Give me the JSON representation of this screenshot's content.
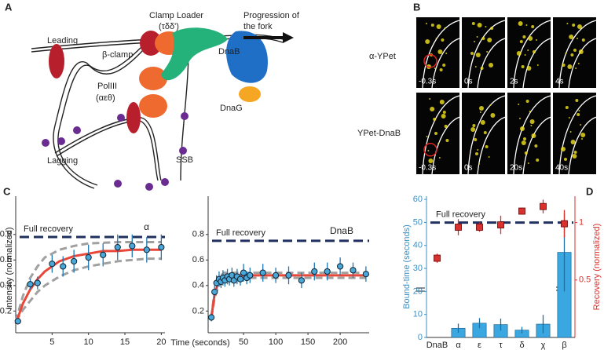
{
  "panels": {
    "a": {
      "letter": "A",
      "clamp_loader": "Clamp Loader",
      "clamp_loader_sub": "(τδδ')",
      "progression_1": "Progression of",
      "progression_2": "the fork",
      "leading": "Leading",
      "beta_clamp": "β-clamp",
      "dnab": "DnaB",
      "pol": "PolIII",
      "pol_sub": "(αεθ)",
      "dnag": "DnaG",
      "lagging": "Lagging",
      "ssb": "SSB"
    },
    "b": {
      "letter": "B",
      "row_labels": [
        "α-YPet",
        "YPet-DnaB"
      ],
      "times": [
        [
          "-0.3s",
          "0s",
          "2s",
          "4s"
        ],
        [
          "-0.3s",
          "0s",
          "20s",
          "40s"
        ]
      ]
    },
    "c": {
      "letter": "C"
    },
    "d": {
      "letter": "D"
    }
  },
  "chart_data": [
    {
      "type": "scatter",
      "ylabel": "Intensity (normalized)",
      "xlabel": "Time (seconds)",
      "annotation": "α",
      "reference_label": "Full recovery",
      "reference_value": 0.78,
      "xlim": [
        0,
        20.5
      ],
      "xticks": [
        5,
        10,
        15,
        20
      ],
      "ylim": [
        0.03,
        1.1
      ],
      "yticks": [
        0.2,
        0.4,
        0.6,
        0.8
      ],
      "color": "#4aa8d8",
      "x": [
        0.3,
        2,
        3,
        5,
        6.5,
        8,
        10,
        12,
        14,
        16,
        18,
        20
      ],
      "values": [
        0.12,
        0.41,
        0.42,
        0.57,
        0.55,
        0.59,
        0.62,
        0.64,
        0.7,
        0.71,
        0.68,
        0.7
      ],
      "errors": [
        0.02,
        0.04,
        0.05,
        0.07,
        0.08,
        0.09,
        0.1,
        0.09,
        0.1,
        0.09,
        0.1,
        0.1
      ],
      "fit": {
        "color": "#e8473a",
        "x": [
          0,
          1,
          2,
          3,
          4,
          6,
          8,
          10,
          12,
          14,
          16,
          18,
          20
        ],
        "values": [
          0.1,
          0.26,
          0.37,
          0.45,
          0.51,
          0.59,
          0.63,
          0.65,
          0.67,
          0.67,
          0.68,
          0.68,
          0.68
        ]
      },
      "bounds": {
        "color": "#a0a0a0",
        "upper": [
          0.12,
          0.32,
          0.46,
          0.55,
          0.62,
          0.68,
          0.71,
          0.73,
          0.735,
          0.74,
          0.74,
          0.74,
          0.74
        ],
        "lower": [
          0.12,
          0.21,
          0.28,
          0.35,
          0.4,
          0.47,
          0.52,
          0.55,
          0.57,
          0.59,
          0.6,
          0.61,
          0.61
        ]
      }
    },
    {
      "type": "scatter",
      "annotation": "DnaB",
      "reference_label": "Full recovery",
      "reference_value": 0.75,
      "xlim": [
        -5,
        245
      ],
      "xticks": [
        50,
        100,
        150,
        200
      ],
      "ylim": [
        0.03,
        1.1
      ],
      "yticks": [
        0.2,
        0.4,
        0.6,
        0.8
      ],
      "color": "#4aa8d8",
      "x": [
        0,
        5,
        8,
        12,
        15,
        18,
        21,
        25,
        28,
        32,
        35,
        40,
        45,
        50,
        55,
        60,
        80,
        100,
        120,
        140,
        160,
        180,
        200,
        220,
        240
      ],
      "values": [
        0.15,
        0.35,
        0.42,
        0.45,
        0.43,
        0.46,
        0.44,
        0.47,
        0.45,
        0.48,
        0.44,
        0.47,
        0.45,
        0.5,
        0.46,
        0.48,
        0.5,
        0.48,
        0.48,
        0.44,
        0.51,
        0.51,
        0.55,
        0.52,
        0.49
      ],
      "errors": [
        0.03,
        0.05,
        0.06,
        0.06,
        0.05,
        0.06,
        0.05,
        0.06,
        0.05,
        0.06,
        0.05,
        0.06,
        0.05,
        0.07,
        0.05,
        0.06,
        0.07,
        0.06,
        0.07,
        0.06,
        0.07,
        0.07,
        0.07,
        0.06,
        0.06
      ],
      "fit": {
        "color": "#e8473a",
        "x": [
          0,
          5,
          10,
          15,
          20,
          30,
          50,
          100,
          240
        ],
        "values": [
          0.15,
          0.33,
          0.41,
          0.45,
          0.47,
          0.48,
          0.48,
          0.48,
          0.48
        ]
      },
      "bounds": {
        "color": "#a0a0a0",
        "upper": [
          0.15,
          0.36,
          0.44,
          0.48,
          0.5,
          0.5,
          0.5,
          0.5,
          0.5
        ],
        "lower": [
          0.15,
          0.3,
          0.38,
          0.42,
          0.44,
          0.46,
          0.46,
          0.46,
          0.46
        ]
      }
    },
    {
      "type": "bar",
      "ylabel": "Bound-time (seconds)",
      "y2label": "Recovery (normalized)",
      "reference_label": "Full recovery",
      "reference_value": 1,
      "categories": [
        "DnaB",
        "α",
        "ε",
        "τ",
        "δ",
        "χ",
        "β"
      ],
      "values": [
        null,
        4,
        6.2,
        5.6,
        3.2,
        5.8,
        37
      ],
      "errors": [
        null,
        2,
        2.2,
        2.6,
        1.4,
        4,
        17
      ],
      "color": "#3aa7e0",
      "ylim": [
        0,
        61.4
      ],
      "yticks": [
        0,
        10,
        20,
        30,
        40,
        50,
        60
      ],
      "y2lim": [
        0,
        1.23
      ],
      "y2ticks": [
        0.5,
        1
      ],
      "recovery": {
        "axis": "y2",
        "color": "#d9322e",
        "values": [
          0.69,
          0.96,
          0.96,
          0.98,
          1.1,
          1.14,
          0.99
        ],
        "errors": [
          0.04,
          0.07,
          0.04,
          0.08,
          0.03,
          0.06,
          0.12
        ]
      }
    }
  ]
}
